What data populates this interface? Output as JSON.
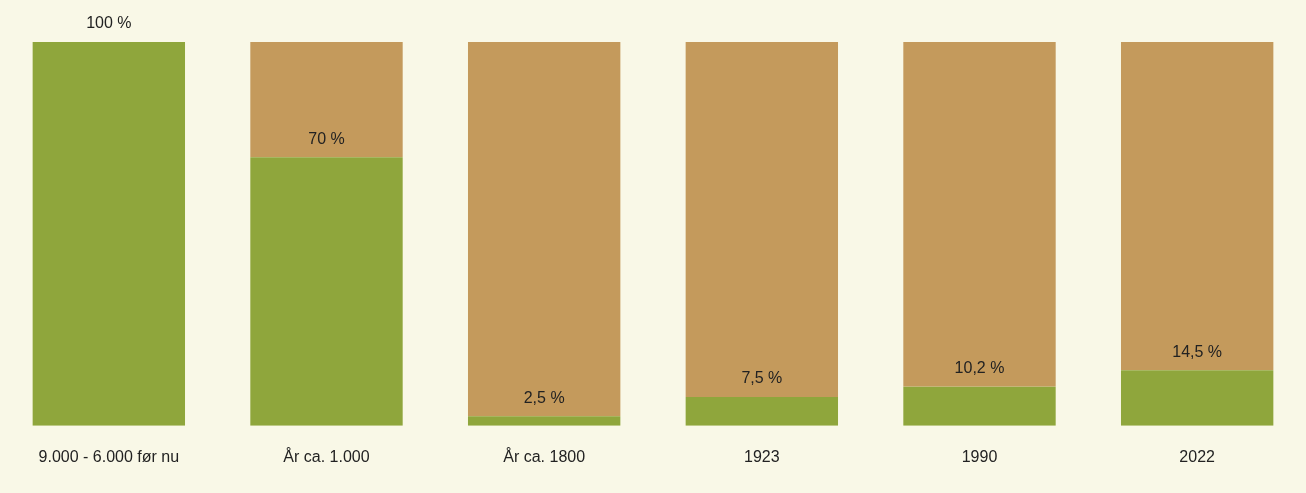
{
  "chart_data": {
    "type": "bar",
    "categories": [
      "9.000 - 6.000 før nu",
      "År ca. 1.000",
      "År ca. 1800",
      "1923",
      "1990",
      "2022"
    ],
    "values": [
      100,
      70,
      2.5,
      7.5,
      10.2,
      14.5
    ],
    "value_labels": [
      "100 %",
      "70 %",
      "2,5 %",
      "7,5 %",
      "10,2 %",
      "14,5 %"
    ],
    "color": "#8fa63c",
    "ylim": [
      0,
      100
    ],
    "grid": false,
    "data_labels": true,
    "tick_labels": "x"
  }
}
